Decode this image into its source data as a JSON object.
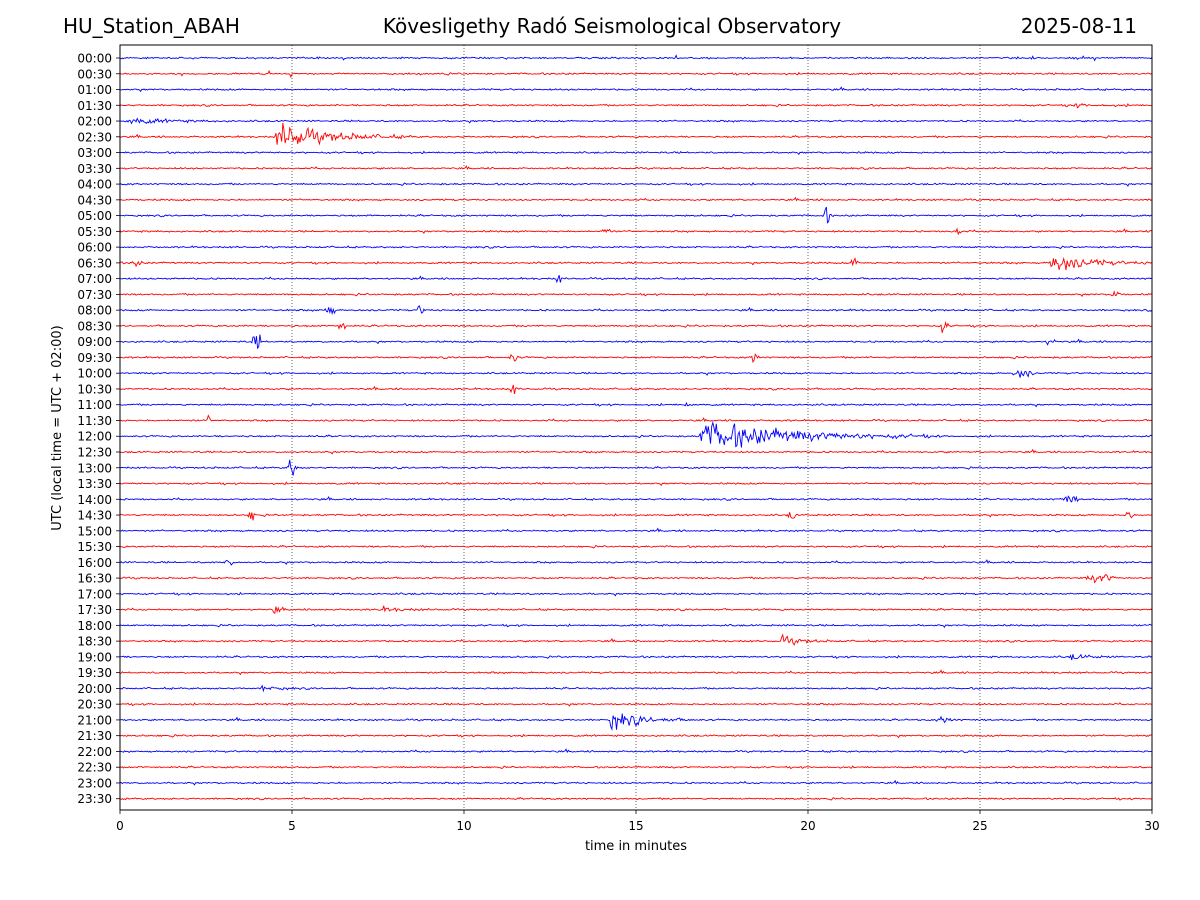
{
  "header": {
    "station": "HU_Station_ABAH",
    "observatory": "Kövesligethy Radó Seismological Observatory",
    "date": "2025-08-11"
  },
  "chart_data": {
    "type": "line",
    "xlabel": "time in minutes",
    "ylabel": "UTC (local time = UTC + 02:00)",
    "xlim": [
      0,
      30
    ],
    "xticks": [
      0,
      5,
      10,
      15,
      20,
      25,
      30
    ],
    "grid": "vertical dotted lines at x ticks",
    "trace_colors": [
      "#0000ff",
      "#ff0000"
    ],
    "rows": [
      "00:00",
      "00:30",
      "01:00",
      "01:30",
      "02:00",
      "02:30",
      "03:00",
      "03:30",
      "04:00",
      "04:30",
      "05:00",
      "05:30",
      "06:00",
      "06:30",
      "07:00",
      "07:30",
      "08:00",
      "08:30",
      "09:00",
      "09:30",
      "10:00",
      "10:30",
      "11:00",
      "11:30",
      "12:00",
      "12:30",
      "13:00",
      "13:30",
      "14:00",
      "14:30",
      "15:00",
      "15:30",
      "16:00",
      "16:30",
      "17:00",
      "17:30",
      "18:00",
      "18:30",
      "19:00",
      "19:30",
      "20:00",
      "20:30",
      "21:00",
      "21:30",
      "22:00",
      "22:30",
      "23:00",
      "23:30"
    ],
    "events": [
      {
        "row": "01:30",
        "start": 27.5,
        "duration": 2.5,
        "amp": 0.25
      },
      {
        "row": "02:00",
        "start": 0.2,
        "duration": 3.0,
        "amp": 0.45
      },
      {
        "row": "02:30",
        "start": 4.5,
        "duration": 4.0,
        "amp": 1.9
      },
      {
        "row": "05:00",
        "start": 20.4,
        "duration": 0.3,
        "amp": 0.9
      },
      {
        "row": "05:30",
        "start": 14.0,
        "duration": 0.3,
        "amp": 0.6
      },
      {
        "row": "05:30",
        "start": 24.2,
        "duration": 0.3,
        "amp": 0.6
      },
      {
        "row": "06:30",
        "start": 0.35,
        "duration": 0.3,
        "amp": 0.7
      },
      {
        "row": "06:30",
        "start": 21.2,
        "duration": 0.3,
        "amp": 0.6
      },
      {
        "row": "06:30",
        "start": 27.0,
        "duration": 3.0,
        "amp": 1.4
      },
      {
        "row": "07:00",
        "start": 12.6,
        "duration": 0.3,
        "amp": 0.5
      },
      {
        "row": "07:30",
        "start": 28.8,
        "duration": 0.3,
        "amp": 0.7
      },
      {
        "row": "08:00",
        "start": 5.9,
        "duration": 0.4,
        "amp": 0.6
      },
      {
        "row": "08:00",
        "start": 8.6,
        "duration": 0.3,
        "amp": 0.6
      },
      {
        "row": "08:30",
        "start": 6.3,
        "duration": 0.3,
        "amp": 0.7
      },
      {
        "row": "08:30",
        "start": 23.8,
        "duration": 0.3,
        "amp": 0.8
      },
      {
        "row": "09:00",
        "start": 3.8,
        "duration": 0.4,
        "amp": 0.9
      },
      {
        "row": "09:00",
        "start": 26.9,
        "duration": 0.3,
        "amp": 0.6
      },
      {
        "row": "09:30",
        "start": 11.3,
        "duration": 0.3,
        "amp": 0.6
      },
      {
        "row": "09:30",
        "start": 18.3,
        "duration": 0.3,
        "amp": 0.8
      },
      {
        "row": "10:00",
        "start": 25.9,
        "duration": 0.7,
        "amp": 0.5
      },
      {
        "row": "10:30",
        "start": 11.3,
        "duration": 0.3,
        "amp": 0.6
      },
      {
        "row": "11:00",
        "start": 16.4,
        "duration": 0.2,
        "amp": 0.5
      },
      {
        "row": "11:30",
        "start": 2.5,
        "duration": 0.2,
        "amp": 0.5
      },
      {
        "row": "12:00",
        "start": 16.8,
        "duration": 7.0,
        "amp": 2.2
      },
      {
        "row": "13:00",
        "start": 4.8,
        "duration": 0.4,
        "amp": 1.2
      },
      {
        "row": "14:00",
        "start": 27.3,
        "duration": 0.6,
        "amp": 0.5
      },
      {
        "row": "14:30",
        "start": 3.7,
        "duration": 0.3,
        "amp": 0.6
      },
      {
        "row": "14:30",
        "start": 19.4,
        "duration": 0.3,
        "amp": 0.6
      },
      {
        "row": "14:30",
        "start": 29.2,
        "duration": 0.3,
        "amp": 0.7
      },
      {
        "row": "16:00",
        "start": 3.0,
        "duration": 0.3,
        "amp": 0.5
      },
      {
        "row": "16:30",
        "start": 28.0,
        "duration": 1.0,
        "amp": 0.5
      },
      {
        "row": "17:30",
        "start": 4.4,
        "duration": 0.3,
        "amp": 0.5
      },
      {
        "row": "17:30",
        "start": 7.5,
        "duration": 1.8,
        "amp": 0.35
      },
      {
        "row": "18:30",
        "start": 19.2,
        "duration": 1.5,
        "amp": 0.7
      },
      {
        "row": "19:00",
        "start": 27.6,
        "duration": 1.3,
        "amp": 0.45
      },
      {
        "row": "20:00",
        "start": 4.1,
        "duration": 1.2,
        "amp": 0.4
      },
      {
        "row": "21:00",
        "start": 14.2,
        "duration": 2.5,
        "amp": 1.3
      },
      {
        "row": "21:00",
        "start": 23.7,
        "duration": 0.6,
        "amp": 0.35
      }
    ]
  }
}
